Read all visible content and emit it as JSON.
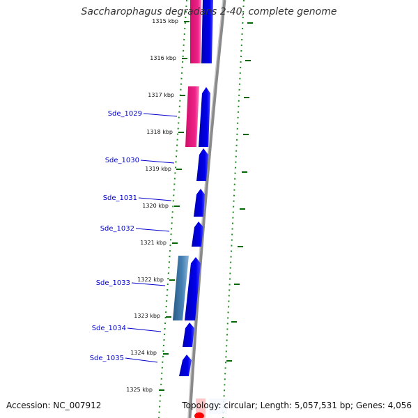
{
  "header": {
    "title": "Saccharophagus degradans 2-40, complete genome"
  },
  "footer": {
    "accession": "Accession: NC_007912",
    "topology": "Topology: circular; Length: 5,057,531 bp; Genes: 4,056"
  },
  "colors": {
    "forward_strand": "#0000ee",
    "highlight_pink": "#ee2288",
    "steel_blue": "#4682b4",
    "gc_ticks": "#006600",
    "backbone": "#808080",
    "label_blue": "#0000cc",
    "start_marker": "#ff0000"
  },
  "ruler_labels": [
    "1315 kbp",
    "1316 kbp",
    "1317 kbp",
    "1318 kbp",
    "1319 kbp",
    "1320 kbp",
    "1321 kbp",
    "1322 kbp",
    "1323 kbp",
    "1324 kbp",
    "1325 kbp"
  ],
  "genes": [
    {
      "label": "Sde_1029"
    },
    {
      "label": "Sde_1030"
    },
    {
      "label": "Sde_1031"
    },
    {
      "label": "Sde_1032"
    },
    {
      "label": "Sde_1033"
    },
    {
      "label": "Sde_1034"
    },
    {
      "label": "Sde_1035"
    }
  ]
}
